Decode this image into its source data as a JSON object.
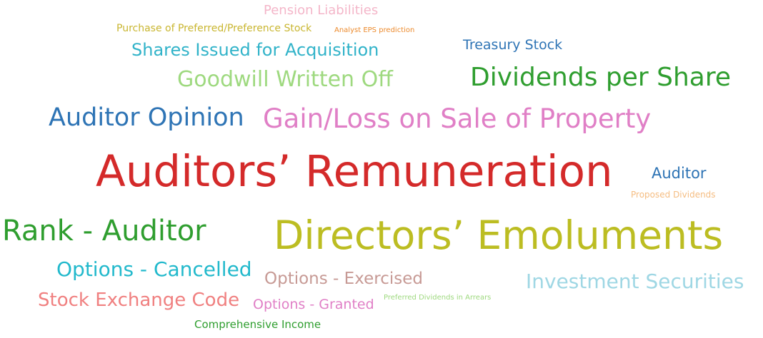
{
  "words": [
    {
      "text": "Pension Liabilities",
      "color": "#f4b6c9"
    },
    {
      "text": "Purchase of Preferred/Preference Stock",
      "color": "#c9b630"
    },
    {
      "text": "Analyst EPS prediction",
      "color": "#ec8a2c"
    },
    {
      "text": "Treasury Stock",
      "color": "#2e74b5"
    },
    {
      "text": "Shares Issued for Acquisition",
      "color": "#31b3c9"
    },
    {
      "text": "Goodwill Written Off",
      "color": "#9ed97f"
    },
    {
      "text": "Dividends per Share",
      "color": "#2f9e2f"
    },
    {
      "text": "Auditor Opinion",
      "color": "#2e74b5"
    },
    {
      "text": "Gain/Loss on Sale of Property",
      "color": "#e07fc6"
    },
    {
      "text": "Auditors’ Remuneration",
      "color": "#d42a2a"
    },
    {
      "text": "Auditor",
      "color": "#2e74b5"
    },
    {
      "text": "Proposed Dividends",
      "color": "#f5bd82"
    },
    {
      "text": "Rank - Auditor",
      "color": "#2f9e2f"
    },
    {
      "text": "Directors’ Emoluments",
      "color": "#bcbd22"
    },
    {
      "text": "Options - Cancelled",
      "color": "#22b9cc"
    },
    {
      "text": "Options - Exercised",
      "color": "#c79a95"
    },
    {
      "text": "Investment Securities",
      "color": "#9fd7e4"
    },
    {
      "text": "Stock Exchange Code",
      "color": "#f08080"
    },
    {
      "text": "Options - Granted",
      "color": "#e07fc6"
    },
    {
      "text": "Preferred Dividends in Arrears",
      "color": "#9ed97f"
    },
    {
      "text": "Comprehensive Income",
      "color": "#2f9e2f"
    }
  ]
}
